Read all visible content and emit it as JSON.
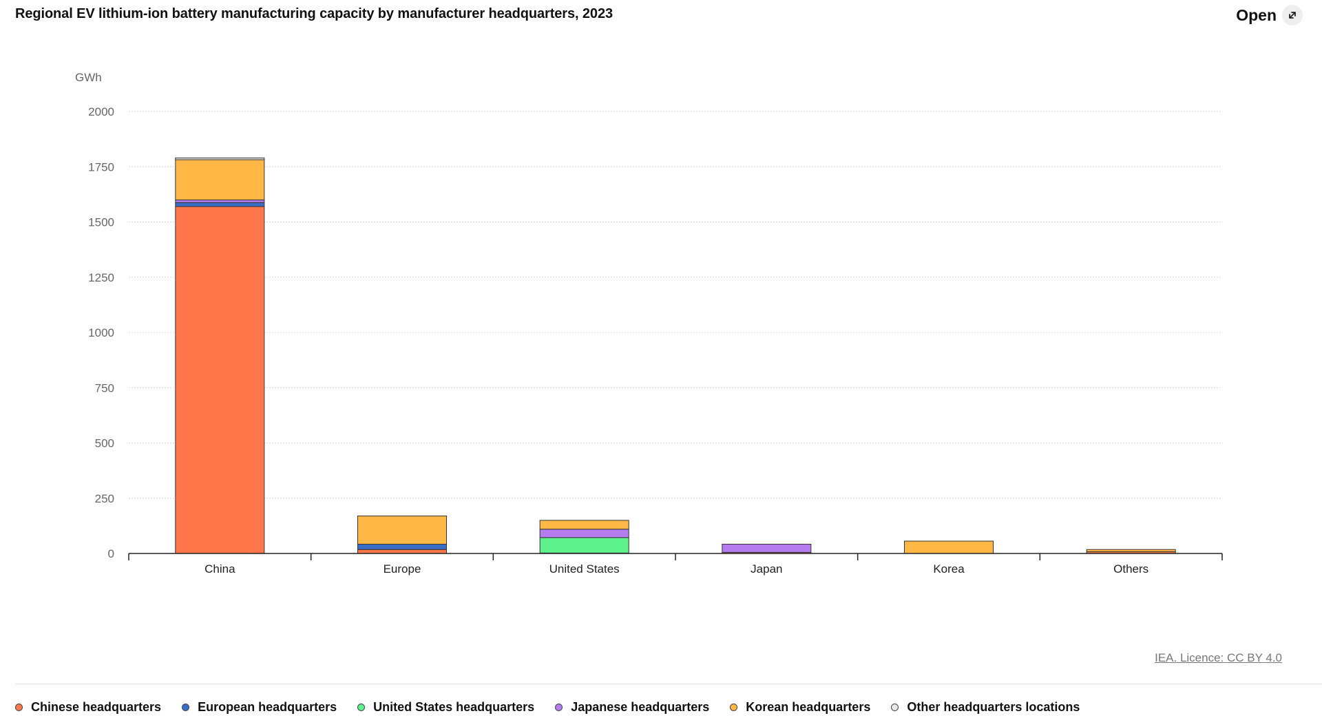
{
  "header": {
    "title": "Regional EV lithium-ion battery manufacturing capacity by manufacturer headquarters, 2023",
    "open_label": "Open",
    "open_icon": "expand-icon"
  },
  "source_label": "IEA. Licence: CC BY 4.0",
  "chart_data": {
    "type": "bar",
    "stacked": true,
    "ylabel": "GWh",
    "ylim": [
      0,
      2000
    ],
    "yticks": [
      "0",
      "250",
      "500",
      "750",
      "1000",
      "1250",
      "1500",
      "1750",
      "2000"
    ],
    "categories": [
      "China",
      "Europe",
      "United States",
      "Japan",
      "Korea",
      "Others"
    ],
    "grid": true,
    "legend_position": "bottom",
    "series": [
      {
        "name": "Chinese headquarters",
        "color": "#ff774a",
        "values": [
          1570,
          18,
          2,
          5,
          0,
          8
        ]
      },
      {
        "name": "European headquarters",
        "color": "#3a6fc9",
        "values": [
          18,
          24,
          0,
          0,
          0,
          0
        ]
      },
      {
        "name": "United States headquarters",
        "color": "#5ef28c",
        "values": [
          0,
          0,
          70,
          0,
          0,
          0
        ]
      },
      {
        "name": "Japanese headquarters",
        "color": "#b57cef",
        "values": [
          12,
          0,
          38,
          37,
          0,
          0
        ]
      },
      {
        "name": "Korean headquarters",
        "color": "#ffb746",
        "values": [
          182,
          128,
          40,
          0,
          56,
          10
        ]
      },
      {
        "name": "Other headquarters locations",
        "color": "#e8e8e8",
        "values": [
          8,
          0,
          0,
          0,
          0,
          0
        ]
      }
    ]
  }
}
